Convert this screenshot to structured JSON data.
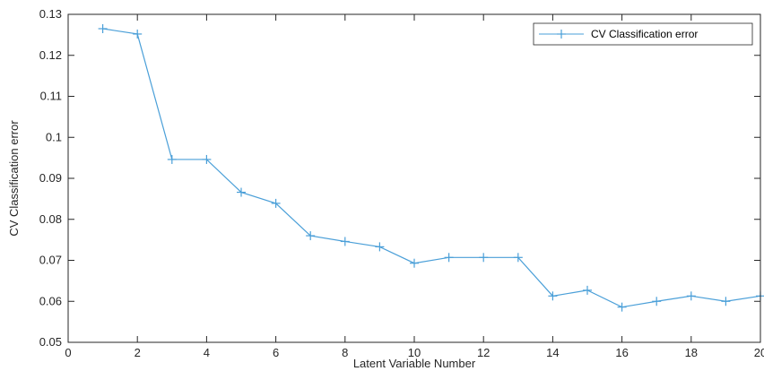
{
  "chart_data": {
    "type": "line",
    "title": "",
    "xlabel": "Latent Variable Number",
    "ylabel": "CV Classification error",
    "xlim": [
      0,
      20
    ],
    "ylim": [
      0.05,
      0.13
    ],
    "xticks": [
      0,
      2,
      4,
      6,
      8,
      10,
      12,
      14,
      16,
      18,
      20
    ],
    "yticks": [
      0.05,
      0.06,
      0.07,
      0.08,
      0.09,
      0.1,
      0.11,
      0.12,
      0.13
    ],
    "xtick_labels": [
      "0",
      "2",
      "4",
      "6",
      "8",
      "10",
      "12",
      "14",
      "16",
      "18",
      "20"
    ],
    "ytick_labels": [
      "0.05",
      "0.06",
      "0.07",
      "0.08",
      "0.09",
      "0.1",
      "0.11",
      "0.12",
      "0.13"
    ],
    "grid": false,
    "legend_position": "top-right",
    "series": [
      {
        "name": "CV Classification error",
        "color": "#4a9fd8",
        "marker": "plus",
        "x": [
          1,
          2,
          3,
          4,
          5,
          6,
          7,
          8,
          9,
          10,
          11,
          12,
          13,
          14,
          15,
          16,
          17,
          18,
          19,
          20
        ],
        "y": [
          0.1265,
          0.1252,
          0.0946,
          0.0946,
          0.0866,
          0.0839,
          0.076,
          0.0746,
          0.0733,
          0.0693,
          0.0707,
          0.0707,
          0.0707,
          0.0613,
          0.0627,
          0.0586,
          0.06,
          0.0613,
          0.06,
          0.0613
        ]
      }
    ]
  }
}
